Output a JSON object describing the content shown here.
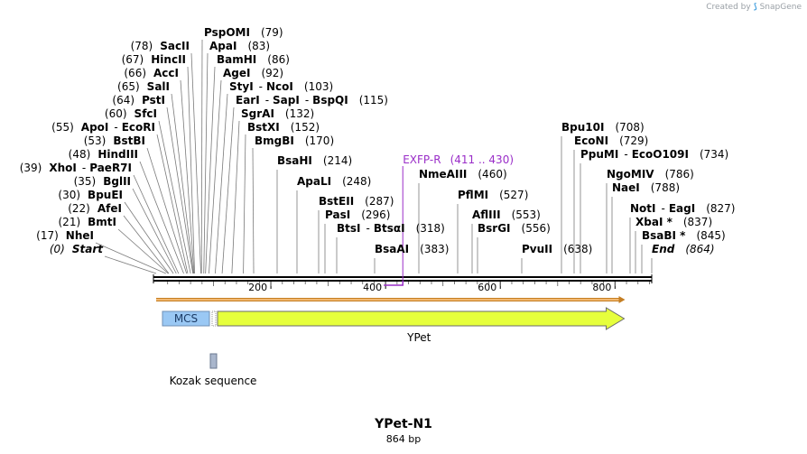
{
  "brand": {
    "prefix": "Created by",
    "name": "SnapGene"
  },
  "colors": {
    "primer": "#9a2ec8",
    "feature_main": "#e6ff3c",
    "feature_mcs": "#9ac8f4",
    "feature_kozak": "#a9b6cc",
    "arrow_stroke": "#6b6b6b",
    "orf_fill": "#f2b870",
    "orf_stroke": "#c47e23"
  },
  "map": {
    "title": "YPet-N1",
    "length": 864,
    "length_label": "864 bp",
    "ticks": [
      {
        "pos": 200,
        "label": "200"
      },
      {
        "pos": 400,
        "label": "400"
      },
      {
        "pos": 600,
        "label": "600"
      },
      {
        "pos": 800,
        "label": "800"
      }
    ],
    "primer": {
      "name": "EXFP-R",
      "range": "(411 .. 430)",
      "start": 411,
      "end": 430
    },
    "features": [
      {
        "name": "MCS",
        "label": "MCS",
        "start": 1,
        "end": 84
      },
      {
        "name": "YPet",
        "label": "YPet",
        "start": 97,
        "end": 816
      },
      {
        "name": "Kozak sequence",
        "label": "Kozak sequence",
        "start": 87,
        "end": 96
      }
    ],
    "sites": [
      {
        "name": "Start",
        "pos_label": "(0)",
        "pos": 0
      },
      {
        "name": "NheI",
        "pos_label": "(17)",
        "pos": 17
      },
      {
        "name": "BmtI",
        "pos_label": "(21)",
        "pos": 21
      },
      {
        "name": "AfeI",
        "pos_label": "(22)",
        "pos": 22
      },
      {
        "name": "BpuEI",
        "pos_label": "(30)",
        "pos": 30
      },
      {
        "name": "BglII",
        "pos_label": "(35)",
        "pos": 35
      },
      {
        "name": "XhoI",
        "name2": "PaeR7I",
        "pos_label": "(39)",
        "pos": 39
      },
      {
        "name": "HindIII",
        "pos_label": "(48)",
        "pos": 48
      },
      {
        "name": "BstBI",
        "pos_label": "(53)",
        "pos": 53
      },
      {
        "name": "ApoI",
        "name2": "EcoRI",
        "pos_label": "(55)",
        "pos": 55
      },
      {
        "name": "SfcI",
        "pos_label": "(60)",
        "pos": 60
      },
      {
        "name": "PstI",
        "pos_label": "(64)",
        "pos": 64
      },
      {
        "name": "SalI",
        "pos_label": "(65)",
        "pos": 65
      },
      {
        "name": "AccI",
        "pos_label": "(66)",
        "pos": 66
      },
      {
        "name": "HincII",
        "pos_label": "(67)",
        "pos": 67
      },
      {
        "name": "SacII",
        "pos_label": "(78)",
        "pos": 78
      },
      {
        "name": "PspOMI",
        "pos_label": "(79)",
        "pos": 79
      },
      {
        "name": "ApaI",
        "pos_label": "(83)",
        "pos": 83
      },
      {
        "name": "BamHI",
        "pos_label": "(86)",
        "pos": 86
      },
      {
        "name": "AgeI",
        "pos_label": "(92)",
        "pos": 92
      },
      {
        "name": "StyI",
        "name2": "NcoI",
        "pos_label": "(103)",
        "pos": 103
      },
      {
        "name": "EarI",
        "name2": "SapI",
        "name3": "BspQI",
        "pos_label": "(115)",
        "pos": 115
      },
      {
        "name": "SgrAI",
        "pos_label": "(132)",
        "pos": 132
      },
      {
        "name": "BstXI",
        "pos_label": "(152)",
        "pos": 152
      },
      {
        "name": "BmgBI",
        "pos_label": "(170)",
        "pos": 170
      },
      {
        "name": "BsaHI",
        "pos_label": "(214)",
        "pos": 214
      },
      {
        "name": "ApaLI",
        "pos_label": "(248)",
        "pos": 248
      },
      {
        "name": "BstEII",
        "pos_label": "(287)",
        "pos": 287
      },
      {
        "name": "PasI",
        "pos_label": "(296)",
        "pos": 296
      },
      {
        "name": "BtsI",
        "name2": "BtsαI",
        "pos_label": "(318)",
        "pos": 318
      },
      {
        "name": "BsaAI",
        "pos_label": "(383)",
        "pos": 383
      },
      {
        "name": "NmeAIII",
        "pos_label": "(460)",
        "pos": 460
      },
      {
        "name": "PflMI",
        "pos_label": "(527)",
        "pos": 527
      },
      {
        "name": "AflIII",
        "pos_label": "(553)",
        "pos": 553
      },
      {
        "name": "BsrGI",
        "pos_label": "(556)",
        "pos": 556
      },
      {
        "name": "PvuII",
        "pos_label": "(638)",
        "pos": 638
      },
      {
        "name": "Bpu10I",
        "pos_label": "(708)",
        "pos": 708
      },
      {
        "name": "EcoNI",
        "pos_label": "(729)",
        "pos": 729
      },
      {
        "name": "PpuMI",
        "name2": "EcoO109I",
        "pos_label": "(734)",
        "pos": 734
      },
      {
        "name": "NgoMIV",
        "pos_label": "(786)",
        "pos": 786
      },
      {
        "name": "NaeI",
        "pos_label": "(788)",
        "pos": 788
      },
      {
        "name": "NotI",
        "name2": "EagI",
        "pos_label": "(827)",
        "pos": 827
      },
      {
        "name": "XbaI *",
        "pos_label": "(837)",
        "pos": 837
      },
      {
        "name": "BsaBI *",
        "pos_label": "(845)",
        "pos": 845
      },
      {
        "name": "End",
        "pos_label": "(864)",
        "pos": 864
      }
    ]
  }
}
